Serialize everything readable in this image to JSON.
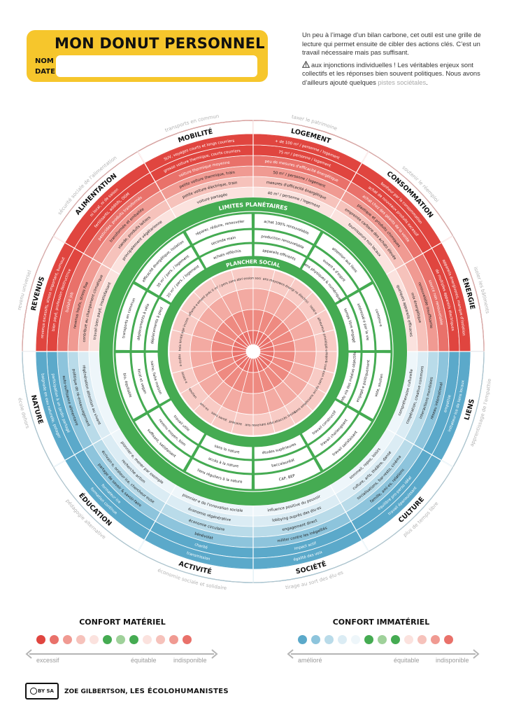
{
  "header": {
    "title": "MON DONUT PERSONNEL",
    "name_label": "NOM",
    "date_label": "DATE"
  },
  "intro": {
    "para1": "Un peu à l’image d’un bilan carbone, cet outil est une grille de lecture qui permet ensuite de cibler des actions clés. C’est un travail nécessaire mais pas suffisant.",
    "para2": "aux injonctions individuelles ! Les véritables enjeux sont collectifs et les réponses bien souvent politiques. Nous avons d’ailleurs ajouté quelques",
    "hint": "pistes sociétales",
    "period": "."
  },
  "colors": {
    "red1": "#e0453f",
    "red2": "#e9716a",
    "red3": "#f09a92",
    "red4": "#f6c2bb",
    "red5": "#fbe2de",
    "green": "#45ab52",
    "greenlight": "#c9e3c4",
    "blue1": "#5ba9ca",
    "blue2": "#8dc4dc",
    "blue3": "#b9dbe9",
    "blue4": "#dbecf4",
    "inner1": "#ee8a81",
    "inner2": "#f3aaa2",
    "inner3": "#f8cbc5"
  },
  "donut": {
    "outer_red": [
      {
        "title": "MOBILITÉ",
        "items": [
          "SUV, voyages courts et longs courriers",
          "grosse voiture thermique, courts courriers",
          "voiture thermique moyenne",
          "petite voiture thermique, train",
          "petite voiture électrique, train",
          "voiture partagée"
        ],
        "hint": "transports en commun"
      },
      {
        "title": "LOGEMENT",
        "items": [
          "+ de 100 m² / personne / logement",
          "75 m² / personne / logement",
          "peu de mesures d'efficacité énergétique",
          "50 m² / personne / logement",
          "mesures d'efficacité énergétique",
          "40 m² / personne / logement"
        ],
        "hint": "taxer le patrimoine"
      },
      {
        "title": "CONSOMMATION",
        "items": [
          "bonheur par la consommation",
          "achat de nouveaux produits excessif",
          "achat chez des géants de la vente",
          "plastique et produits chimiques",
          "empreinte carbone des achats élevée",
          "fournisseurs non locaux"
        ],
        "hint": "soutenir le réemploi"
      },
      {
        "title": "ÉNERGIE",
        "items": [
          "appareils énergivores, manque d'isolation",
          "de multiples appareils électriques",
          "source non renouvelable",
          "renouvelable insuffisante",
          "mix énergétique",
          "quelques appareils efficaces"
        ],
        "hint": "isoler les bâtiments"
      },
      {
        "title": "REVENUS",
        "items": [
          "revenus excessifs, stress important, burnout",
          "bien payé, profession destructrice",
          "bullshit job",
          "revenus hauts, stress fixe",
          "contribue au changement climatique",
          "travail bien payé, insatisfaisant"
        ],
        "hint": "revenu universel"
      },
      {
        "title": "ALIMENTATION",
        "items": [
          "ni local, ni de saison",
          "fertilisants, additifs, OGM",
          "pesticides, produits transformés",
          "transformée et emballée",
          "viande, produits laitiers",
          "principalement végétarienne"
        ],
        "hint": "sécurité sociale de l'alimentation"
      }
    ],
    "outer_blue": [
      {
        "title": "LIENS",
        "items": [
          "initiateur·ice de liens locaux",
          "empathie",
          "réseau international",
          "interactions mondiales",
          "coopération, creative commons",
          "compréhension culturelle"
        ],
        "hint": "apprentissage de l'empathie"
      },
      {
        "title": "CULTURE",
        "items": [
          "travail épanouissant",
          "équilibre pro-perso idéal",
          "famille, ami·es, relations",
          "socialisations, bar-resto, cinéma",
          "culture, arts, théâtre, danse",
          "sommeil, repos, loisirs"
        ],
        "hint": "plus de temps libre"
      },
      {
        "title": "SOCIÉTÉ",
        "items": [
          "égalité des voix",
          "impact actif",
          "militer contre les inégalités",
          "engagement direct",
          "lobbying auprès des élu·es",
          "influence positive du pouvoir"
        ],
        "hint": "tirage au sort des élu·es"
      },
      {
        "title": "ACTIVITÉ",
        "items": [
          "transmission",
          "charité",
          "bénévolat",
          "économie circulaire",
          "économie régénérative",
          "pionnier·e de l'innovation sociale"
        ],
        "hint": "économie sociale et solidaire"
      },
      {
        "title": "ÉDUCATION",
        "items": [
          "formation continue",
          "formateur·ice",
          "partage de savoir & savoir-faire",
          "écrivain·e, orateur·ice, chercheur·euse",
          "recherche action",
          "pionnier·e, mener par exemple"
        ],
        "hint": "pédagogie alternative"
      },
      {
        "title": "NATURE",
        "items": [
          "baignade en eau naturelle, potager",
          "participation à un jardin partagé",
          "auto-suffisance alimentaire",
          "politique de ré-ensauvagement",
          "régénération attention au vivant"
        ],
        "hint": "école dehors"
      }
    ],
    "limites_title": "LIMITES PLANÉTAIRES",
    "plancher_title": "PLANCHER SOCIAL",
    "green_ring": [
      [
        "transports en commun",
        "déplacements à vélo",
        "déplacements à pied"
      ],
      [
        "efficacité énergétique, isolation",
        "30 m² / pers. / logement",
        "20 m² / pers. / logement"
      ],
      [
        "réparer, réduire, renouveler",
        "seconde main",
        "achats réfléchis"
      ],
      [
        "achat 100% renouvelable",
        "production renouvelable",
        "appareils efficients"
      ],
      [
        "attention aux liens",
        "ouvert·e d'esprit",
        "liens physiques & numériques"
      ],
      [
        "contenu·e",
        "intéressé·e par la vie",
        "temps libre engagé"
      ],
      [
        "vote, soutien",
        "engagé·e politiquement",
        "info via des médias objectifs"
      ],
      [
        "travail satisfaisant",
        "travail challengeant",
        "travail constructif"
      ],
      [
        "CAP, BEP",
        "baccalauréat",
        "études supérieures"
      ],
      [
        "liens réguliers à la nature",
        "accès à la nature",
        "sans la nature"
      ],
      [
        "suffisant, satisfaisant",
        "revenu moyen, bien",
        "travail utile"
      ],
      [
        "bio, équitable",
        "local et vegan",
        "saine, faite maison"
      ]
    ],
    "inner_ring": [
      "choix limités",
      "bagage incomplet",
      "affamé·e",
      "logement précaire",
      "10 m² / pers.",
      "sans abri",
      "pression sociale",
      "sans moyen",
      "sans énergie",
      "sans électricité",
      "isolé·e",
      "malheureux·se",
      "privilégié·e",
      "sans qualité·e",
      "sans voix",
      "sans accès",
      "sans emploi",
      "accès limité",
      "sans éducation",
      "sans revenu",
      "précaire",
      "sans santé",
      "ami·es",
      "soutien",
      "assez·e",
      "repris·e"
    ]
  },
  "legend_material": {
    "title": "CONFORT MATÉRIEL",
    "left": "excessif",
    "mid": "équitable",
    "right": "indisponible",
    "dots": [
      "#e0453f",
      "#e9716a",
      "#f09a92",
      "#f6c2bb",
      "#fbe2de",
      "#45ab52",
      "#9fd19a",
      "#45ab52",
      "#fbe2de",
      "#f6c2bb",
      "#f09a92",
      "#e9716a"
    ]
  },
  "legend_immaterial": {
    "title": "CONFORT IMMATÉRIEL",
    "left": "amélioré",
    "mid": "équitable",
    "right": "indisponible",
    "dots": [
      "#5ba9ca",
      "#8dc4dc",
      "#b9dbe9",
      "#dbecf4",
      "#eef6fa",
      "#45ab52",
      "#9fd19a",
      "#45ab52",
      "#fbe2de",
      "#f6c2bb",
      "#f09a92",
      "#e9716a"
    ]
  },
  "footer": {
    "license": "BY SA",
    "author": "ZOE GILBERTSON,",
    "brand": "LES ÉCOLOHUMANISTES"
  }
}
